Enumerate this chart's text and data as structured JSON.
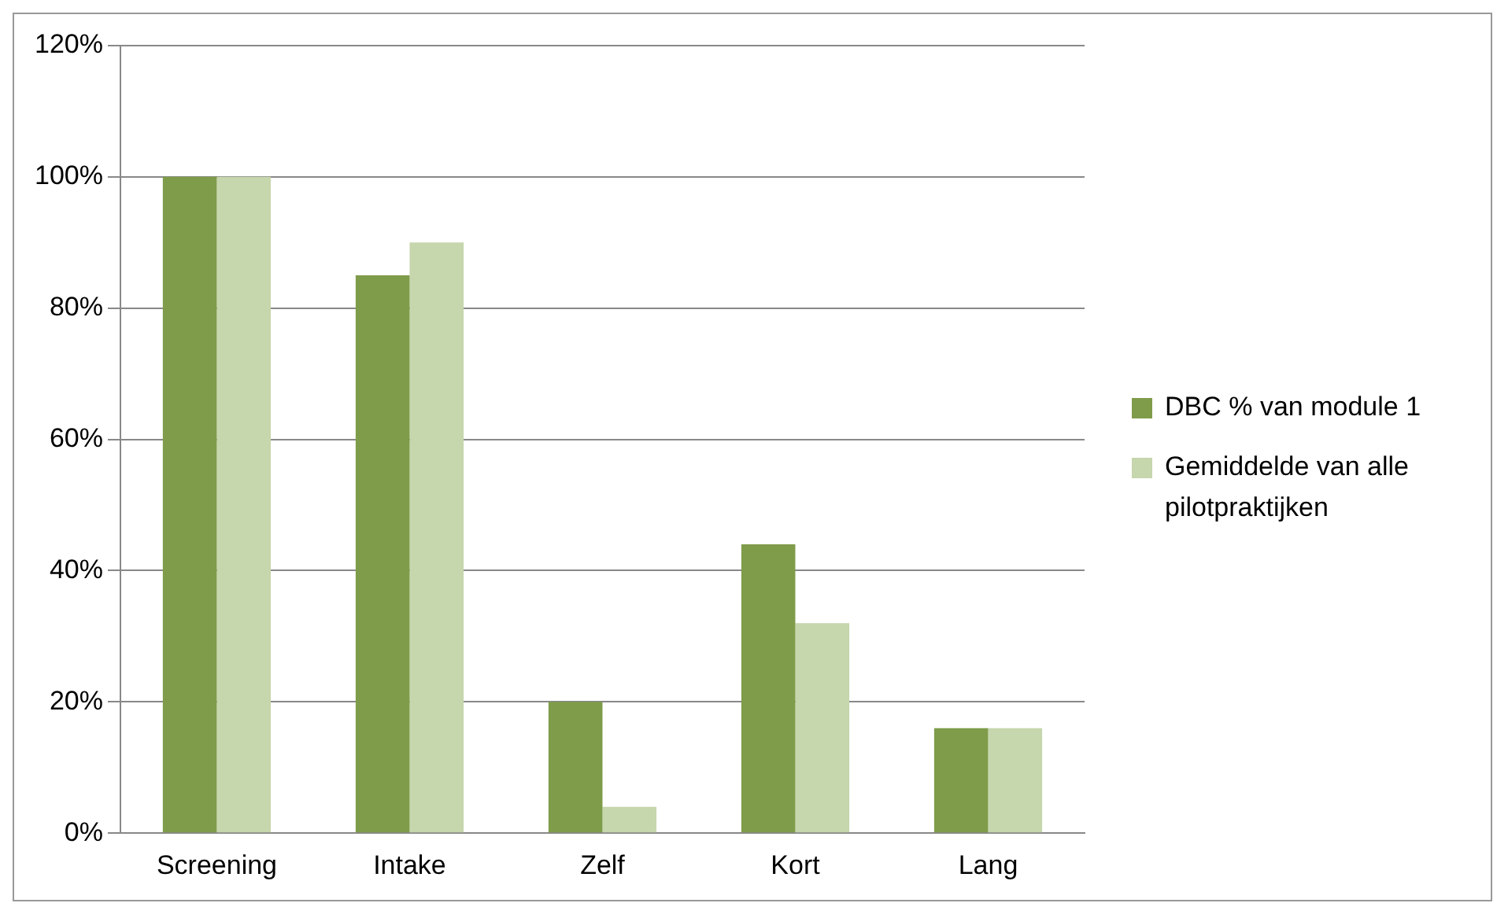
{
  "chart_data": {
    "type": "bar",
    "categories": [
      "Screening",
      "Intake",
      "Zelf",
      "Kort",
      "Lang"
    ],
    "series": [
      {
        "name": "DBC % van module 1",
        "color": "#7f9c4a",
        "values": [
          100,
          85,
          20,
          44,
          16
        ]
      },
      {
        "name": "Gemiddelde van alle pilotpraktijken",
        "color": "#c6d6ad",
        "values": [
          100,
          90,
          4,
          32,
          16
        ]
      }
    ],
    "ylim": [
      0,
      120
    ],
    "yticks": [
      {
        "value": 0,
        "label": "0%"
      },
      {
        "value": 20,
        "label": "20%"
      },
      {
        "value": 40,
        "label": "40%"
      },
      {
        "value": 60,
        "label": "60%"
      },
      {
        "value": 80,
        "label": "80%"
      },
      {
        "value": 100,
        "label": "100%"
      },
      {
        "value": 120,
        "label": "120%"
      }
    ],
    "grid": "y",
    "legend": "right"
  }
}
